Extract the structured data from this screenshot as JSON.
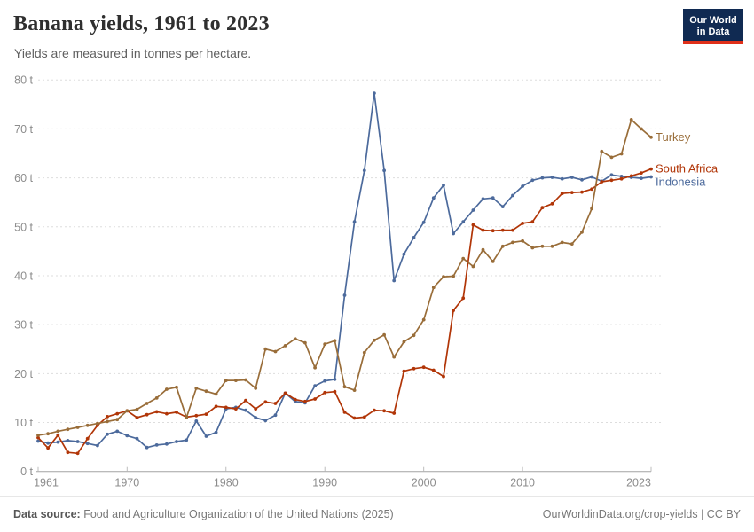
{
  "header": {
    "title": "Banana yields, 1961 to 2023",
    "subtitle": "Yields are measured in tonnes per hectare."
  },
  "logo": {
    "line1": "Our World",
    "line2": "in Data",
    "bg_color": "#102a52",
    "accent_color": "#e0301a"
  },
  "footer": {
    "source_label": "Data source:",
    "source_text": " Food and Agriculture Organization of the United Nations (2025)",
    "link_text": "OurWorldinData.org/crop-yields | CC BY"
  },
  "chart_data": {
    "type": "line",
    "title": "Banana yields, 1961 to 2023",
    "subtitle": "Yields are measured in tonnes per hectare.",
    "xlabel": "",
    "ylabel": "tonnes per hectare",
    "unit_suffix": " t",
    "xlim": [
      1961,
      2023
    ],
    "ylim": [
      0,
      80
    ],
    "xticks": [
      1961,
      1970,
      1980,
      1990,
      2000,
      2010,
      2023
    ],
    "yticks": [
      0,
      10,
      20,
      30,
      40,
      50,
      60,
      70,
      80
    ],
    "grid": "dashed horizontal",
    "legend_position": "end-of-line labels, right side",
    "axis_label_color": "#8c8c8c",
    "gridline_color": "#dddddd",
    "x": [
      1961,
      1962,
      1963,
      1964,
      1965,
      1966,
      1967,
      1968,
      1969,
      1970,
      1971,
      1972,
      1973,
      1974,
      1975,
      1976,
      1977,
      1978,
      1979,
      1980,
      1981,
      1982,
      1983,
      1984,
      1985,
      1986,
      1987,
      1988,
      1989,
      1990,
      1991,
      1992,
      1993,
      1994,
      1995,
      1996,
      1997,
      1998,
      1999,
      2000,
      2001,
      2002,
      2003,
      2004,
      2005,
      2006,
      2007,
      2008,
      2009,
      2010,
      2011,
      2012,
      2013,
      2014,
      2015,
      2016,
      2017,
      2018,
      2019,
      2020,
      2021,
      2022,
      2023
    ],
    "series": [
      {
        "name": "Indonesia",
        "color": "#4C6A9C",
        "values": [
          6.2,
          5.8,
          6.0,
          6.3,
          6.1,
          5.7,
          5.3,
          7.6,
          8.2,
          7.3,
          6.7,
          4.9,
          5.4,
          5.6,
          6.1,
          6.4,
          10.3,
          7.2,
          8.0,
          12.8,
          13.1,
          12.5,
          11.0,
          10.4,
          11.5,
          16.0,
          14.3,
          14.0,
          17.5,
          18.5,
          18.8,
          36.0,
          51.0,
          61.5,
          77.3,
          61.5,
          39.0,
          44.4,
          47.8,
          50.9,
          55.9,
          58.5,
          48.6,
          51.0,
          53.4,
          55.7,
          55.9,
          54.1,
          56.4,
          58.3,
          59.5,
          60.0,
          60.1,
          59.8,
          60.1,
          59.6,
          60.2,
          59.3,
          60.6,
          60.3,
          60.1,
          59.9,
          60.2
        ]
      },
      {
        "name": "South Africa",
        "color": "#B13507",
        "values": [
          6.9,
          4.8,
          7.4,
          3.9,
          3.7,
          6.7,
          9.4,
          11.2,
          11.8,
          12.4,
          11.0,
          11.6,
          12.2,
          11.8,
          12.1,
          11.1,
          11.4,
          11.7,
          13.3,
          13.1,
          12.8,
          14.5,
          12.8,
          14.2,
          13.9,
          16.0,
          14.7,
          14.3,
          14.8,
          16.1,
          16.3,
          12.1,
          10.9,
          11.1,
          12.5,
          12.4,
          11.9,
          20.5,
          21.0,
          21.3,
          20.7,
          19.4,
          32.9,
          35.4,
          50.4,
          49.3,
          49.2,
          49.3,
          49.3,
          50.7,
          51.0,
          53.9,
          54.7,
          56.8,
          57.0,
          57.1,
          57.7,
          59.2,
          59.5,
          59.8,
          60.4,
          61.0,
          61.8
        ]
      },
      {
        "name": "Turkey",
        "color": "#996D39",
        "values": [
          7.4,
          7.7,
          8.2,
          8.6,
          9.0,
          9.4,
          9.8,
          10.2,
          10.6,
          12.4,
          12.7,
          13.9,
          15.0,
          16.8,
          17.2,
          11.0,
          17.0,
          16.4,
          15.8,
          18.6,
          18.6,
          18.7,
          17.0,
          25.0,
          24.5,
          25.7,
          27.1,
          26.3,
          21.2,
          26.0,
          26.7,
          17.3,
          16.6,
          24.3,
          26.8,
          27.9,
          23.4,
          26.5,
          27.8,
          31.0,
          37.6,
          39.8,
          39.9,
          43.5,
          41.9,
          45.3,
          42.9,
          46.0,
          46.8,
          47.1,
          45.7,
          46.0,
          46.0,
          46.8,
          46.5,
          48.9,
          53.7,
          65.4,
          64.2,
          64.9,
          71.9,
          70.0,
          68.3
        ]
      }
    ]
  }
}
